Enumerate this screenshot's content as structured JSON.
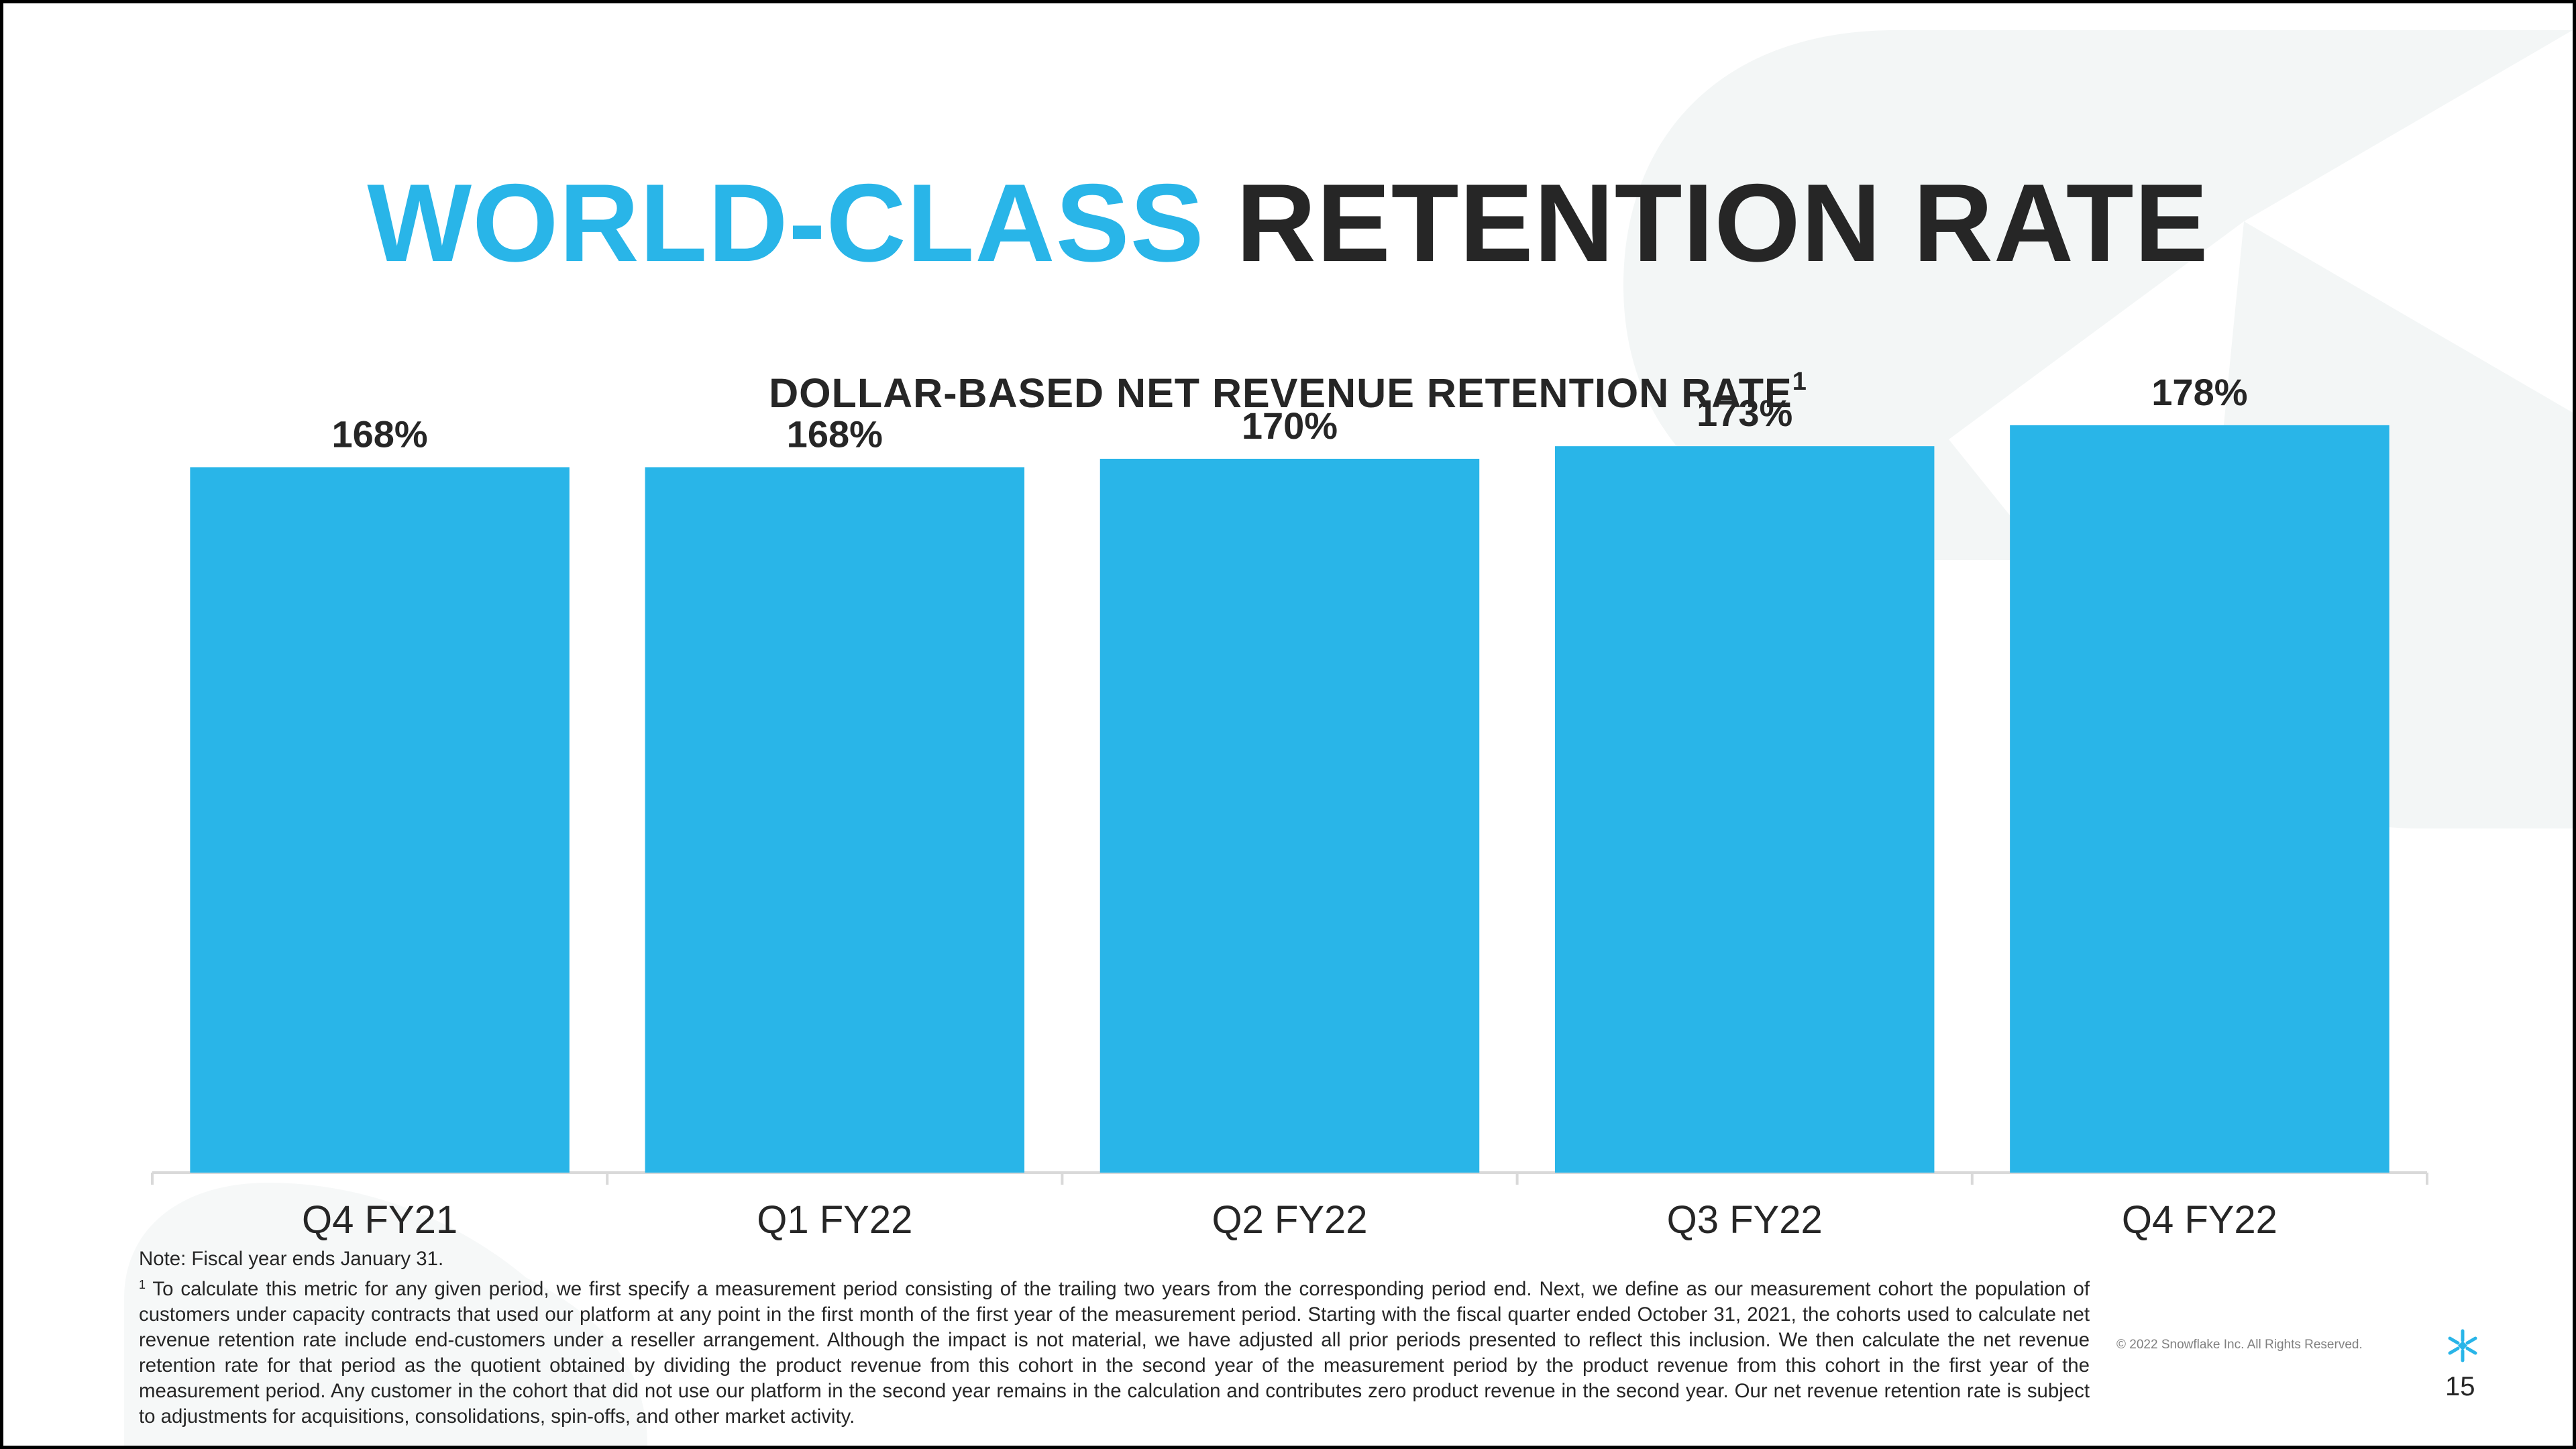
{
  "slide": {
    "title_accent": "WORLD-CLASS",
    "title_rest": "RETENTION RATE",
    "subtitle": "DOLLAR-BASED NET REVENUE RETENTION RATE",
    "subtitle_superscript": "1",
    "page_number": "15",
    "copyright": "© 2022 Snowflake Inc. All Rights Reserved.",
    "logo_icon": "snowflake-icon"
  },
  "footnotes": {
    "note": "Note: Fiscal year ends January 31.",
    "footnote_marker": "1",
    "footnote_text": "To calculate this metric for any given period, we first specify a measurement period consisting of the trailing two years from the corresponding period end. Next, we define as our measurement cohort the population of customers under capacity contracts that used our platform at any point in the first month of the first year of the measurement period. Starting with the fiscal quarter ended October 31, 2021, the cohorts used to calculate net revenue retention rate include end-customers under a reseller arrangement. Although the impact is not material, we have adjusted all prior periods presented to reflect this inclusion. We then calculate the net revenue retention rate for that period as the quotient obtained by dividing the product revenue from this cohort in the second year of the measurement period by the product revenue from this cohort in the first year of the measurement period. Any customer in the cohort that did not use our platform in the second year remains in the calculation and contributes zero product revenue in the second year. Our net revenue retention rate is subject to adjustments for acquisitions, consolidations, spin-offs, and other market activity."
  },
  "colors": {
    "accent": "#29B5E8",
    "dark_text": "#262626",
    "bar": "#29B5E8",
    "background_shape": "#F3F6F6"
  },
  "chart_data": {
    "type": "bar",
    "title": "DOLLAR-BASED NET REVENUE RETENTION RATE",
    "categories": [
      "Q4 FY21",
      "Q1 FY22",
      "Q2 FY22",
      "Q3 FY22",
      "Q4 FY22"
    ],
    "values": [
      168,
      168,
      170,
      173,
      178
    ],
    "value_labels": [
      "168%",
      "168%",
      "170%",
      "173%",
      "178%"
    ],
    "unit": "%",
    "ylim": [
      0,
      189
    ],
    "grid": false,
    "legend": "none"
  }
}
